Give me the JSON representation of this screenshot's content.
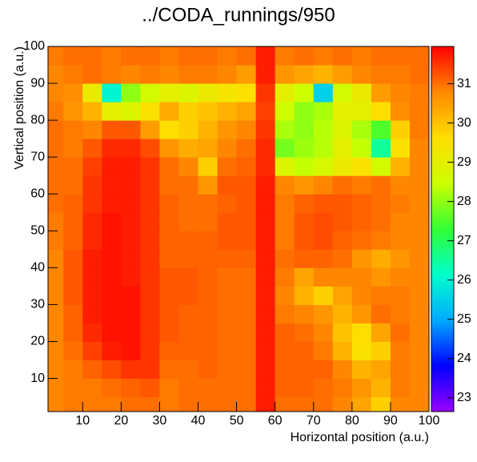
{
  "chart_data": {
    "type": "heatmap",
    "title": "../CODA_runnings/950",
    "x_label": "Horizontal position (a.u.)",
    "y_label": "Vertical position (a.u.)",
    "xbins": [
      1,
      5,
      10,
      15,
      20,
      25,
      30,
      35,
      40,
      45,
      50,
      55,
      60,
      65,
      70,
      75,
      80,
      85,
      90,
      95,
      100
    ],
    "ybins": [
      1,
      5,
      10,
      15,
      20,
      25,
      30,
      35,
      40,
      45,
      50,
      55,
      60,
      65,
      70,
      75,
      80,
      85,
      90,
      95,
      100
    ],
    "xlim": [
      1,
      100
    ],
    "ylim": [
      1,
      100
    ],
    "xticks": [
      10,
      20,
      30,
      40,
      50,
      60,
      70,
      80,
      90,
      100
    ],
    "yticks": [
      10,
      20,
      30,
      40,
      50,
      60,
      70,
      80,
      90,
      100
    ],
    "zlim": [
      22.65,
      31.95
    ],
    "zticks": [
      23,
      24,
      25,
      26,
      27,
      28,
      29,
      30,
      31
    ],
    "colormap": [
      "#9900ff",
      "#0000ff",
      "#00aaff",
      "#00ffcc",
      "#33ff33",
      "#ccff00",
      "#ffdd00",
      "#ff8800",
      "#ff0000"
    ],
    "z": [
      [
        30.8,
        30.9,
        30.9,
        30.9,
        31,
        31,
        30.9,
        31,
        31,
        31,
        31,
        31.7,
        31,
        31,
        31,
        30.8,
        30.4,
        29.8,
        30.8,
        30.8
      ],
      [
        30.8,
        30.9,
        30.9,
        31,
        31.1,
        31.2,
        30.9,
        31,
        31,
        31,
        31,
        31.7,
        31.1,
        31.1,
        31,
        30.9,
        30.6,
        30.2,
        30.9,
        30.8
      ],
      [
        30.8,
        30.9,
        31.1,
        31.3,
        31.5,
        31.5,
        31,
        31,
        31.1,
        31,
        31,
        31.7,
        31.1,
        31.1,
        31.1,
        30.8,
        30.2,
        30.4,
        30.9,
        30.8
      ],
      [
        30.8,
        31,
        31.4,
        31.7,
        31.8,
        31.5,
        31.1,
        31.1,
        31.1,
        31,
        31,
        31.7,
        31.1,
        31.1,
        30.9,
        30.2,
        29.5,
        29.8,
        30.9,
        30.8
      ],
      [
        30.8,
        31.1,
        31.6,
        31.8,
        31.8,
        31.5,
        31.2,
        31.1,
        31.1,
        31,
        31,
        31.7,
        31.1,
        31,
        30.8,
        30,
        29.6,
        30.4,
        31,
        30.8
      ],
      [
        30.8,
        31.1,
        31.7,
        31.8,
        31.8,
        31.5,
        31.2,
        31.1,
        31.1,
        31,
        31,
        31.7,
        30.9,
        30.8,
        30.6,
        30.2,
        30.6,
        31,
        30.9,
        30.8
      ],
      [
        30.8,
        31.2,
        31.7,
        31.8,
        31.8,
        31.5,
        31.2,
        31.2,
        31.1,
        31,
        31,
        31.7,
        30.8,
        30.2,
        29.8,
        30.4,
        30.8,
        30.9,
        30.9,
        30.8
      ],
      [
        30.8,
        31.2,
        31.7,
        31.8,
        31.7,
        31.5,
        31.2,
        31.2,
        31.1,
        31,
        31,
        31.7,
        30.9,
        30.4,
        30.8,
        30.8,
        30.8,
        30.6,
        30.8,
        30.8
      ],
      [
        30.8,
        31.2,
        31.7,
        31.8,
        31.7,
        31.5,
        31.1,
        31.1,
        31.1,
        31.1,
        31.1,
        31.7,
        31,
        31.1,
        31.1,
        31,
        30.6,
        30.3,
        30.6,
        30.8
      ],
      [
        30.9,
        31.1,
        31.6,
        31.8,
        31.7,
        31.5,
        31.1,
        31.1,
        31.1,
        31.2,
        31.2,
        31.7,
        30.9,
        31.2,
        31.3,
        31.1,
        31,
        30.9,
        30.8,
        30.8
      ],
      [
        30.9,
        31.1,
        31.6,
        31.8,
        31.7,
        31.5,
        31.1,
        31,
        31,
        31.2,
        31.2,
        31.7,
        30.9,
        31.2,
        31.3,
        31.2,
        31.1,
        31,
        30.8,
        30.8
      ],
      [
        31,
        31.1,
        31.5,
        31.7,
        31.7,
        31.5,
        31.1,
        31,
        31,
        31.1,
        31.2,
        31.7,
        30.9,
        31.1,
        31.2,
        31.2,
        31.1,
        31,
        30.9,
        30.8
      ],
      [
        31,
        31,
        31.5,
        31.7,
        31.7,
        31.5,
        31,
        31,
        30.6,
        31.2,
        31.2,
        31.7,
        30.8,
        30.6,
        30.8,
        31,
        30.9,
        31,
        30.8,
        30.8
      ],
      [
        31,
        31,
        31.4,
        31.7,
        31.7,
        31.5,
        31,
        30.8,
        29.8,
        31,
        31.1,
        31.6,
        28.8,
        28.4,
        28.7,
        29.2,
        29.5,
        28.6,
        30.2,
        30.8
      ],
      [
        31,
        30.9,
        31.2,
        31.6,
        31.6,
        31.3,
        30.6,
        30.3,
        30.4,
        30.8,
        31,
        31.6,
        27.8,
        28.1,
        28.3,
        29,
        28.4,
        26.5,
        29.5,
        30.8
      ],
      [
        31,
        30.9,
        30.8,
        31.2,
        31.2,
        30.5,
        29.6,
        29.8,
        30.2,
        30.6,
        30.8,
        31.5,
        28.2,
        28,
        28.3,
        28.8,
        28.2,
        27.5,
        29.8,
        30.9
      ],
      [
        30.9,
        30.6,
        30.2,
        29,
        28.8,
        29.5,
        30.3,
        29.8,
        30,
        30.2,
        30.4,
        31.4,
        28.5,
        28,
        28.2,
        29,
        29,
        29.6,
        30.7,
        30.9
      ],
      [
        30.8,
        30.7,
        29.2,
        26,
        28,
        28.6,
        29,
        28.8,
        29.2,
        29.4,
        29.5,
        31.5,
        29,
        28.5,
        25.5,
        28.6,
        29.2,
        30.5,
        30.8,
        30.9
      ],
      [
        30.8,
        30.9,
        31,
        30.9,
        30.8,
        30.9,
        30.8,
        30.9,
        30.9,
        30.8,
        30.5,
        31.7,
        30.6,
        30.4,
        30.2,
        30.5,
        30.8,
        30.9,
        30.9,
        31
      ],
      [
        30.9,
        31,
        31,
        30.9,
        31,
        31,
        30.9,
        31,
        31,
        30.9,
        31,
        31.7,
        30.9,
        31,
        30.9,
        31,
        30.9,
        31,
        31,
        31
      ]
    ]
  }
}
